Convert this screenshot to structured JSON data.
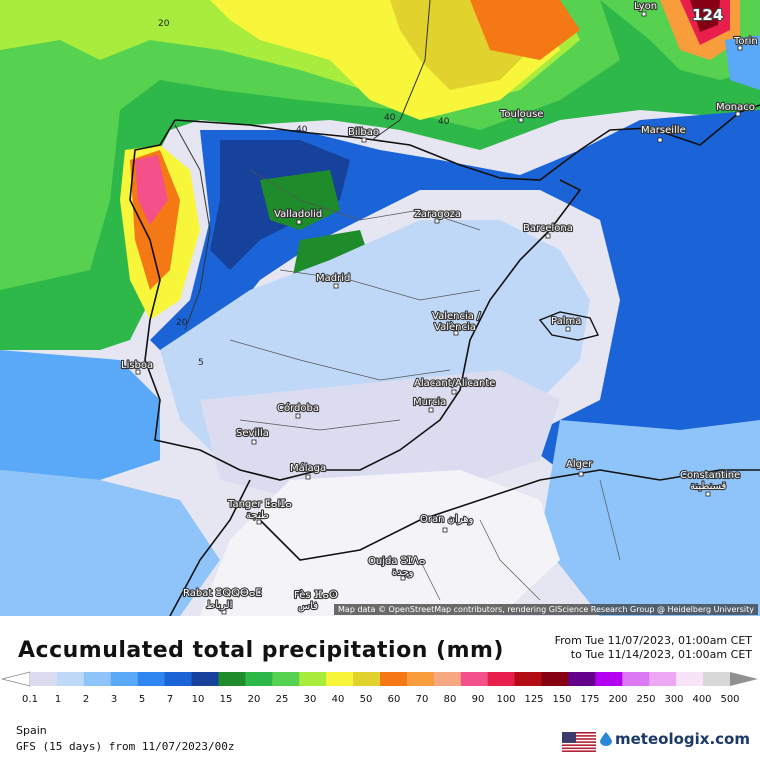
{
  "map": {
    "cities": [
      {
        "name": "Lyon"
      },
      {
        "name": "Torin"
      },
      {
        "name": "Monaco"
      },
      {
        "name": "Marseille"
      },
      {
        "name": "Toulouse"
      },
      {
        "name": "Bilbao"
      },
      {
        "name": "Valladolid"
      },
      {
        "name": "Zaragoza"
      },
      {
        "name": "Barcelona"
      },
      {
        "name": "Madrid"
      },
      {
        "name": "Valencia /"
      },
      {
        "name": "València"
      },
      {
        "name": "Palma"
      },
      {
        "name": "Lisboa"
      },
      {
        "name": "Alacant/Alicante"
      },
      {
        "name": "Murcia"
      },
      {
        "name": "Córdoba"
      },
      {
        "name": "Sevilla"
      },
      {
        "name": "Málaga"
      },
      {
        "name": "Alger"
      },
      {
        "name": "Constantine"
      },
      {
        "name": "قسنطينة"
      },
      {
        "name": "Tanger ⵟⴰⵏⵊⴰ"
      },
      {
        "name": "طنجة"
      },
      {
        "name": "Oran وهران"
      },
      {
        "name": "Oujda ⵓⵊⴷⴰ"
      },
      {
        "name": "وجدة"
      },
      {
        "name": "Rabat ⴻⵕⵕⴱⴰⵟ"
      },
      {
        "name": "الرباط"
      },
      {
        "name": "Fès ⴼⴰⵙ"
      },
      {
        "name": "فاس"
      }
    ],
    "contour_labels": [
      "20",
      "40",
      "40",
      "40",
      "20",
      "5"
    ],
    "peak_label": "124",
    "attribution": "Map data © OpenStreetMap contributors, rendering GIScience Research Group @ Heidelberg University"
  },
  "legend": {
    "title": "Accumulated total precipitation (mm)",
    "from": "From Tue 11/07/2023, 01:00am CET",
    "to": "to Tue 11/14/2023, 01:00am CET",
    "ticks": [
      "0.1",
      "1",
      "2",
      "3",
      "5",
      "7",
      "10",
      "15",
      "20",
      "25",
      "30",
      "40",
      "50",
      "60",
      "70",
      "80",
      "90",
      "100",
      "125",
      "150",
      "175",
      "200",
      "250",
      "300",
      "400",
      "500"
    ],
    "colors": [
      "#dcdcf0",
      "#c0d8f8",
      "#8ec4fa",
      "#5aa8f8",
      "#2f86f0",
      "#1a64d8",
      "#16429c",
      "#1e8c2a",
      "#2fb84a",
      "#56d250",
      "#a8ec3e",
      "#f8f63a",
      "#e2d22e",
      "#f47814",
      "#f89c3c",
      "#f8a880",
      "#f4508a",
      "#e81e4c",
      "#b40c14",
      "#840012",
      "#64008c",
      "#b400f0",
      "#dc78f4",
      "#eca8f4",
      "#f8e4f8",
      "#d8d8d8"
    ],
    "region": "Spain",
    "model": "GFS (15 days) from 11/07/2023/00z",
    "brand": "meteologix.com"
  }
}
